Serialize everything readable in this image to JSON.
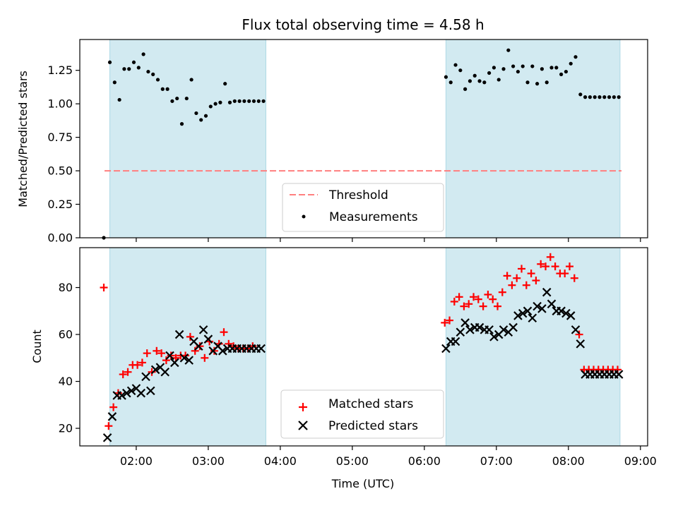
{
  "title": "Flux total observing time = 4.58 h",
  "colors": {
    "shade": "#add8e6",
    "threshold": "#ff7f7f",
    "measurement": "#000000",
    "matched": "#ff0000",
    "predicted": "#000000"
  },
  "chart_data": [
    {
      "type": "scatter",
      "ylabel": "Matched/Predicted stars",
      "xlim": [
        "01:13",
        "09:06"
      ],
      "ylim": [
        0,
        1.48
      ],
      "yticks": [
        "0.00",
        "0.25",
        "0.50",
        "0.75",
        "1.00",
        "1.25"
      ],
      "shaded_intervals": [
        [
          "01:38",
          "03:48"
        ],
        [
          "06:18",
          "08:43"
        ]
      ],
      "threshold": 0.5,
      "legend": {
        "position": "bottom-center",
        "entries": [
          "Threshold",
          "Measurements"
        ]
      },
      "series": [
        {
          "name": "Measurements",
          "x": [
            "01:33",
            "01:38",
            "01:42",
            "01:46",
            "01:50",
            "01:54",
            "01:58",
            "02:02",
            "02:06",
            "02:10",
            "02:14",
            "02:18",
            "02:22",
            "02:26",
            "02:30",
            "02:34",
            "02:38",
            "02:42",
            "02:46",
            "02:50",
            "02:54",
            "02:58",
            "03:02",
            "03:06",
            "03:10",
            "03:14",
            "03:18",
            "03:22",
            "03:26",
            "03:30",
            "03:34",
            "03:38",
            "03:42",
            "03:46",
            "06:18",
            "06:22",
            "06:26",
            "06:30",
            "06:34",
            "06:38",
            "06:42",
            "06:46",
            "06:50",
            "06:54",
            "06:58",
            "07:02",
            "07:06",
            "07:10",
            "07:14",
            "07:18",
            "07:22",
            "07:26",
            "07:30",
            "07:34",
            "07:38",
            "07:42",
            "07:46",
            "07:50",
            "07:54",
            "07:58",
            "08:02",
            "08:06",
            "08:10",
            "08:14",
            "08:18",
            "08:22",
            "08:26",
            "08:30",
            "08:34",
            "08:38",
            "08:42"
          ],
          "values": [
            0.0,
            1.31,
            1.16,
            1.03,
            1.26,
            1.26,
            1.31,
            1.27,
            1.37,
            1.24,
            1.22,
            1.18,
            1.11,
            1.11,
            1.02,
            1.04,
            0.85,
            1.04,
            1.18,
            0.93,
            0.88,
            0.91,
            0.98,
            1.0,
            1.01,
            1.15,
            1.01,
            1.02,
            1.02,
            1.02,
            1.02,
            1.02,
            1.02,
            1.02,
            1.2,
            1.16,
            1.29,
            1.25,
            1.11,
            1.17,
            1.21,
            1.17,
            1.16,
            1.23,
            1.27,
            1.18,
            1.26,
            1.4,
            1.28,
            1.24,
            1.28,
            1.16,
            1.28,
            1.15,
            1.26,
            1.16,
            1.27,
            1.27,
            1.22,
            1.24,
            1.3,
            1.35,
            1.07,
            1.05,
            1.05,
            1.05,
            1.05,
            1.05,
            1.05,
            1.05,
            1.05
          ]
        }
      ]
    },
    {
      "type": "scatter",
      "xlabel": "Time (UTC)",
      "ylabel": "Count",
      "xlim": [
        "01:13",
        "09:06"
      ],
      "ylim": [
        12.5,
        97
      ],
      "yticks": [
        "20",
        "40",
        "60",
        "80"
      ],
      "xticks": [
        "02:00",
        "03:00",
        "04:00",
        "05:00",
        "06:00",
        "07:00",
        "08:00",
        "09:00"
      ],
      "shaded_intervals": [
        [
          "01:38",
          "03:48"
        ],
        [
          "06:18",
          "08:43"
        ]
      ],
      "legend": {
        "position": "bottom-center",
        "entries": [
          "Matched stars",
          "Predicted stars"
        ]
      },
      "series": [
        {
          "name": "Matched stars",
          "x": [
            "01:33",
            "01:37",
            "01:41",
            "01:45",
            "01:49",
            "01:53",
            "01:57",
            "02:01",
            "02:05",
            "02:09",
            "02:13",
            "02:17",
            "02:21",
            "02:25",
            "02:29",
            "02:33",
            "02:37",
            "02:41",
            "02:45",
            "02:49",
            "02:53",
            "02:57",
            "03:01",
            "03:05",
            "03:09",
            "03:13",
            "03:17",
            "03:21",
            "03:25",
            "03:29",
            "03:33",
            "03:37",
            "06:17",
            "06:21",
            "06:25",
            "06:29",
            "06:33",
            "06:37",
            "06:41",
            "06:45",
            "06:49",
            "06:53",
            "06:57",
            "07:01",
            "07:05",
            "07:09",
            "07:13",
            "07:17",
            "07:21",
            "07:25",
            "07:29",
            "07:33",
            "07:37",
            "07:41",
            "07:45",
            "07:49",
            "07:53",
            "07:57",
            "08:01",
            "08:05",
            "08:09",
            "08:13",
            "08:17",
            "08:21",
            "08:25",
            "08:29",
            "08:33",
            "08:37",
            "08:41"
          ],
          "values": [
            80,
            21,
            29,
            35,
            43,
            44,
            47,
            47,
            48,
            52,
            44,
            53,
            52,
            49,
            51,
            50,
            51,
            51,
            59,
            53,
            55,
            50,
            57,
            53,
            56,
            61,
            56,
            55,
            54,
            54,
            54,
            55,
            65,
            66,
            74,
            76,
            72,
            73,
            76,
            75,
            72,
            77,
            75,
            72,
            78,
            85,
            81,
            84,
            88,
            81,
            86,
            83,
            90,
            89,
            93,
            89,
            86,
            86,
            89,
            84,
            60,
            45,
            45,
            45,
            45,
            45,
            45,
            45,
            45
          ]
        },
        {
          "name": "Predicted stars",
          "x": [
            "01:36",
            "01:40",
            "01:44",
            "01:48",
            "01:52",
            "01:56",
            "02:00",
            "02:04",
            "02:08",
            "02:12",
            "02:16",
            "02:20",
            "02:24",
            "02:28",
            "02:32",
            "02:36",
            "02:40",
            "02:44",
            "02:48",
            "02:52",
            "02:56",
            "03:00",
            "03:04",
            "03:08",
            "03:12",
            "03:16",
            "03:20",
            "03:24",
            "03:28",
            "03:32",
            "03:36",
            "03:40",
            "03:44",
            "06:18",
            "06:22",
            "06:26",
            "06:30",
            "06:34",
            "06:38",
            "06:42",
            "06:46",
            "06:50",
            "06:54",
            "06:58",
            "07:02",
            "07:06",
            "07:10",
            "07:14",
            "07:18",
            "07:22",
            "07:26",
            "07:30",
            "07:34",
            "07:38",
            "07:42",
            "07:46",
            "07:50",
            "07:54",
            "07:58",
            "08:02",
            "08:06",
            "08:10",
            "08:14",
            "08:18",
            "08:22",
            "08:26",
            "08:30",
            "08:34",
            "08:38",
            "08:42"
          ],
          "values": [
            16,
            25,
            34,
            34,
            35,
            36,
            37,
            35,
            42,
            36,
            45,
            46,
            44,
            51,
            48,
            60,
            50,
            49,
            57,
            55,
            62,
            58,
            53,
            55,
            53,
            54,
            54,
            54,
            54,
            54,
            54,
            54,
            54,
            54,
            57,
            57,
            61,
            65,
            62,
            63,
            63,
            62,
            62,
            59,
            60,
            62,
            61,
            63,
            68,
            69,
            70,
            67,
            72,
            71,
            78,
            73,
            70,
            70,
            69,
            68,
            62,
            56,
            43,
            43,
            43,
            43,
            43,
            43,
            43,
            43
          ]
        }
      ]
    }
  ]
}
